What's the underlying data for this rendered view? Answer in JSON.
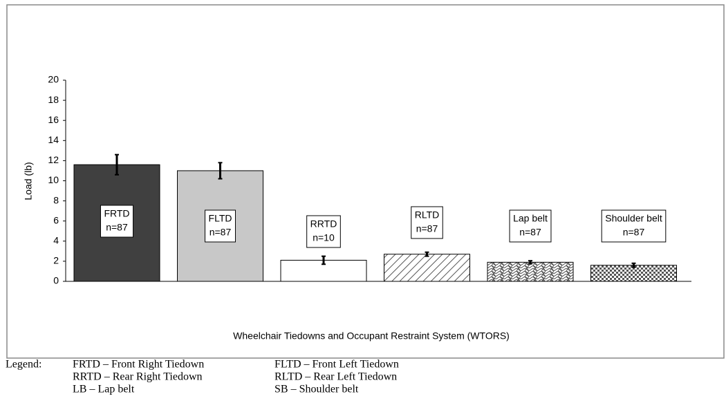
{
  "chart_data": {
    "type": "bar",
    "y_axis_label": "Load (lb)",
    "x_axis_label": "Wheelchair Tiedowns and Occupant Restraint System (WTORS)",
    "categories": [
      "FRTD",
      "FLTD",
      "RRTD",
      "RLTD",
      "Lap belt",
      "Shoulder belt"
    ],
    "sample_sizes": [
      "n=87",
      "n=87",
      "n=10",
      "n=87",
      "n=87",
      "n=87"
    ],
    "values": [
      11.6,
      11.0,
      2.1,
      2.7,
      1.9,
      1.6
    ],
    "errors": [
      1.0,
      0.8,
      0.4,
      0.2,
      0.15,
      0.2
    ],
    "colors": [
      "#404040",
      "#c8c8c8",
      "#ffffff",
      "#ffffff",
      "#ffffff",
      "#ffffff"
    ],
    "patterns": [
      "solid",
      "solid",
      "solid",
      "diagonal",
      "weave",
      "checker"
    ],
    "ylim": [
      0,
      20
    ],
    "yticks": [
      0,
      2,
      4,
      6,
      8,
      10,
      12,
      14,
      16,
      18,
      20
    ],
    "grid": false,
    "legend_note": {
      "label": "Legend:",
      "entries": [
        [
          "FRTD – Front Right Tiedown",
          "FLTD – Front Left Tiedown"
        ],
        [
          "RRTD – Rear Right Tiedown",
          "RLTD – Rear Left Tiedown"
        ],
        [
          "LB – Lap belt",
          "SB – Shoulder belt"
        ]
      ]
    }
  }
}
